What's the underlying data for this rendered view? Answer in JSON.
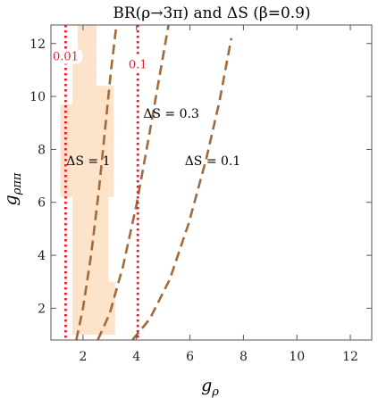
{
  "chart_data": {
    "type": "line",
    "title": "BR(ρ→3π) and ΔS (β=0.9)",
    "xlabel": "gρ",
    "ylabel": "gρππ",
    "xlim": [
      0.8,
      12.8
    ],
    "ylim": [
      0.8,
      12.7
    ],
    "x_ticks": [
      2,
      4,
      6,
      8,
      10,
      12
    ],
    "y_ticks": [
      2,
      4,
      6,
      8,
      10,
      12
    ],
    "grid": false,
    "colors": {
      "region_fill": "#fde3c9",
      "delta_s_curve": "#a06a3c",
      "br_line": "#e0202a",
      "frame": "#555555"
    },
    "allowed_region": {
      "polygon": [
        [
          1.8,
          12.7
        ],
        [
          2.5,
          12.7
        ],
        [
          2.5,
          10.4
        ],
        [
          3.15,
          10.4
        ],
        [
          3.15,
          6.2
        ],
        [
          2.95,
          6.2
        ],
        [
          2.95,
          3.0
        ],
        [
          3.2,
          3.0
        ],
        [
          3.2,
          1.0
        ],
        [
          1.6,
          1.0
        ],
        [
          1.6,
          6.2
        ],
        [
          1.15,
          6.2
        ],
        [
          1.15,
          9.7
        ],
        [
          1.6,
          9.7
        ],
        [
          1.6,
          11.5
        ],
        [
          1.8,
          11.5
        ]
      ]
    },
    "delta_s_curves": [
      {
        "label": "ΔS = 1",
        "x": [
          1.75,
          2.0,
          2.3,
          2.6,
          2.85,
          3.05,
          3.25
        ],
        "y": [
          0.8,
          2.0,
          4.0,
          6.5,
          9.0,
          11.0,
          12.7
        ]
      },
      {
        "label": "ΔS = 0.3",
        "x": [
          2.55,
          3.0,
          3.5,
          4.0,
          4.45,
          4.85,
          5.2
        ],
        "y": [
          0.8,
          1.8,
          3.6,
          5.9,
          8.4,
          10.7,
          12.7
        ]
      },
      {
        "label": "ΔS = 0.1",
        "x": [
          3.85,
          4.5,
          5.25,
          5.95,
          6.6,
          7.1,
          7.55
        ],
        "y": [
          0.8,
          1.6,
          3.1,
          5.2,
          7.6,
          9.8,
          12.2
        ]
      }
    ],
    "br_lines": [
      {
        "label": "0.01",
        "x": 1.35
      },
      {
        "label": "0.1",
        "x": 4.05
      }
    ],
    "annotations": [
      {
        "text": "ΔS = 1",
        "x": 2.2,
        "y": 7.4
      },
      {
        "text": "ΔS = 0.3",
        "x": 5.3,
        "y": 9.2
      },
      {
        "text": "ΔS = 0.1",
        "x": 6.85,
        "y": 7.4
      }
    ],
    "br_label_positions": [
      {
        "text": "0.01",
        "x": 1.35,
        "y": 11.4
      },
      {
        "text": "0.1",
        "x": 4.05,
        "y": 11.1
      }
    ]
  }
}
